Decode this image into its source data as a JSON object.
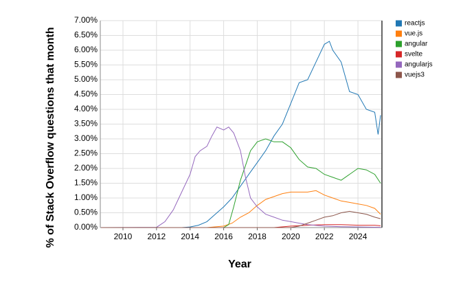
{
  "chart_data": {
    "type": "line",
    "x_label": "Year",
    "y_label": "% of Stack Overflow questions that month",
    "xlim": [
      2008.65,
      2025.43
    ],
    "xticks": [
      2010,
      2012,
      2014,
      2016,
      2018,
      2020,
      2022,
      2024
    ],
    "ylim": [
      0,
      7
    ],
    "yticks": [
      {
        "value": 0,
        "label": "0.00%"
      },
      {
        "value": 0.5,
        "label": "0.50%"
      },
      {
        "value": 1,
        "label": "1.00%"
      },
      {
        "value": 1.5,
        "label": "1.50%"
      },
      {
        "value": 2,
        "label": "2.00%"
      },
      {
        "value": 2.5,
        "label": "2.50%"
      },
      {
        "value": 3,
        "label": "3.00%"
      },
      {
        "value": 3.5,
        "label": "3.50%"
      },
      {
        "value": 4,
        "label": "4.00%"
      },
      {
        "value": 4.5,
        "label": "4.50%"
      },
      {
        "value": 5,
        "label": "5.00%"
      },
      {
        "value": 5.5,
        "label": "5.50%"
      },
      {
        "value": 6,
        "label": "6.00%"
      },
      {
        "value": 6.5,
        "label": "6.50%"
      },
      {
        "value": 7,
        "label": "7.00%"
      }
    ],
    "grid": true,
    "legend": "right",
    "series": [
      {
        "name": "reactjs",
        "color": "#1f77b4",
        "x": [
          2008.7,
          2013.5,
          2014,
          2014.5,
          2015,
          2015.5,
          2016,
          2016.5,
          2017,
          2017.5,
          2018,
          2018.5,
          2019,
          2019.5,
          2020,
          2020.5,
          2021,
          2021.5,
          2022,
          2022.3,
          2022.5,
          2023,
          2023.5,
          2024,
          2024.5,
          2025,
          2025.2,
          2025.35
        ],
        "values": [
          0,
          0,
          0.02,
          0.08,
          0.2,
          0.45,
          0.7,
          1.0,
          1.4,
          1.8,
          2.2,
          2.6,
          3.1,
          3.5,
          4.2,
          4.9,
          5.0,
          5.6,
          6.2,
          6.3,
          6.0,
          5.6,
          4.6,
          4.5,
          4.0,
          3.9,
          3.15,
          3.8
        ]
      },
      {
        "name": "vue.js",
        "color": "#ff7f0e",
        "x": [
          2008.7,
          2015,
          2016,
          2016.5,
          2017,
          2017.5,
          2018,
          2018.5,
          2019,
          2019.5,
          2020,
          2020.5,
          2021,
          2021.5,
          2022,
          2022.5,
          2023,
          2023.5,
          2024,
          2024.5,
          2025,
          2025.35
        ],
        "values": [
          0,
          0,
          0.05,
          0.15,
          0.35,
          0.5,
          0.75,
          0.95,
          1.05,
          1.15,
          1.2,
          1.2,
          1.2,
          1.25,
          1.1,
          1.0,
          0.9,
          0.85,
          0.8,
          0.75,
          0.65,
          0.45
        ]
      },
      {
        "name": "angular",
        "color": "#2ca02c",
        "x": [
          2008.7,
          2016,
          2016.3,
          2016.6,
          2017,
          2017.3,
          2017.6,
          2018,
          2018.5,
          2019,
          2019.5,
          2020,
          2020.5,
          2021,
          2021.5,
          2022,
          2022.5,
          2023,
          2023.5,
          2024,
          2024.5,
          2025,
          2025.35
        ],
        "values": [
          0,
          0,
          0.1,
          0.7,
          1.6,
          2.1,
          2.6,
          2.9,
          3.0,
          2.9,
          2.9,
          2.7,
          2.3,
          2.05,
          2.0,
          1.8,
          1.7,
          1.6,
          1.8,
          2.0,
          1.95,
          1.8,
          1.5
        ]
      },
      {
        "name": "svelte",
        "color": "#d62728",
        "x": [
          2008.7,
          2019,
          2020,
          2021,
          2022,
          2023,
          2024,
          2025,
          2025.35
        ],
        "values": [
          0,
          0,
          0.05,
          0.08,
          0.1,
          0.1,
          0.08,
          0.08,
          0.06
        ]
      },
      {
        "name": "angularjs",
        "color": "#9467bd",
        "x": [
          2008.7,
          2012,
          2012.5,
          2013,
          2013.5,
          2014,
          2014.3,
          2014.6,
          2015,
          2015.3,
          2015.6,
          2016,
          2016.3,
          2016.6,
          2017,
          2017.3,
          2017.6,
          2018,
          2018.5,
          2019,
          2019.5,
          2020,
          2020.5,
          2021,
          2022,
          2023,
          2025.35
        ],
        "values": [
          0,
          0.01,
          0.2,
          0.6,
          1.2,
          1.8,
          2.4,
          2.6,
          2.75,
          3.1,
          3.4,
          3.3,
          3.4,
          3.2,
          2.6,
          1.7,
          1.0,
          0.7,
          0.45,
          0.35,
          0.25,
          0.2,
          0.15,
          0.1,
          0.05,
          0.03,
          0.01
        ]
      },
      {
        "name": "vuejs3",
        "color": "#8c564b",
        "x": [
          2008.7,
          2020,
          2020.5,
          2021,
          2021.5,
          2022,
          2022.5,
          2023,
          2023.5,
          2024,
          2024.5,
          2025,
          2025.35
        ],
        "values": [
          0,
          0,
          0.05,
          0.15,
          0.25,
          0.35,
          0.4,
          0.5,
          0.55,
          0.5,
          0.45,
          0.35,
          0.3
        ]
      }
    ]
  }
}
